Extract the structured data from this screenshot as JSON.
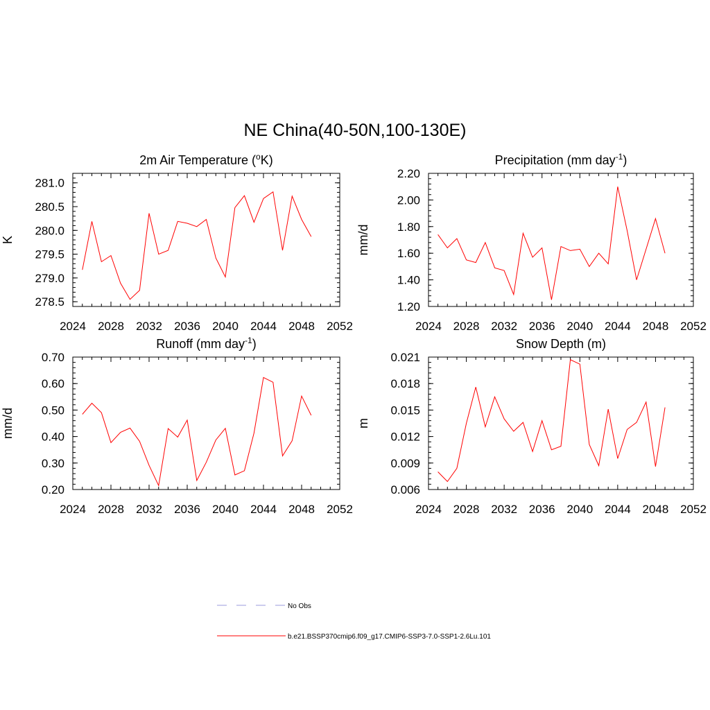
{
  "figure": {
    "title": "NE China(40-50N,100-130E)"
  },
  "legend": {
    "entries": [
      {
        "label": "No Obs",
        "color": "#9999dd",
        "dash": "dashed"
      },
      {
        "label": "b.e21.BSSP370cmip6.f09_g17.CMIP6-SSP3-7.0-SSP1-2.6Lu.101",
        "color": "#ff0000",
        "dash": "solid"
      }
    ]
  },
  "chart_data": [
    {
      "type": "line",
      "title": "2m Air Temperature",
      "title_sup": "o",
      "title_parts": [
        "2m Air Temperature (",
        "K)"
      ],
      "xlabel": "",
      "ylabel": "K",
      "xlim": [
        2024,
        2052
      ],
      "ylim": [
        278.4,
        281.2
      ],
      "x_ticks": [
        2024,
        2028,
        2032,
        2036,
        2040,
        2044,
        2048,
        2052
      ],
      "y_ticks": [
        "278.5",
        "279.0",
        "279.5",
        "280.0",
        "280.5",
        "281.0"
      ],
      "grid": false,
      "series": [
        {
          "color": "#ff0000",
          "x": [
            2025,
            2026,
            2027,
            2028,
            2029,
            2030,
            2031,
            2032,
            2033,
            2034,
            2035,
            2036,
            2037,
            2038,
            2039,
            2040,
            2041,
            2042,
            2043,
            2044,
            2045,
            2046,
            2047,
            2048,
            2049
          ],
          "y": [
            279.17,
            280.19,
            279.34,
            279.47,
            278.89,
            278.55,
            278.74,
            280.36,
            279.5,
            279.58,
            280.19,
            280.15,
            280.08,
            280.23,
            279.42,
            279.02,
            280.48,
            280.73,
            280.17,
            280.67,
            280.81,
            279.58,
            280.72,
            280.23,
            279.87
          ]
        }
      ]
    },
    {
      "type": "line",
      "title": "Precipitation",
      "title_sup": "-1",
      "title_parts": [
        "Precipitation (mm day",
        ")"
      ],
      "xlabel": "",
      "ylabel": "mm/d",
      "xlim": [
        2024,
        2052
      ],
      "ylim": [
        1.2,
        2.2
      ],
      "x_ticks": [
        2024,
        2028,
        2032,
        2036,
        2040,
        2044,
        2048,
        2052
      ],
      "y_ticks": [
        "1.20",
        "1.40",
        "1.60",
        "1.80",
        "2.00",
        "2.20"
      ],
      "grid": false,
      "series": [
        {
          "color": "#ff0000",
          "x": [
            2025,
            2026,
            2027,
            2028,
            2029,
            2030,
            2031,
            2032,
            2033,
            2034,
            2035,
            2036,
            2037,
            2038,
            2039,
            2040,
            2041,
            2042,
            2043,
            2044,
            2045,
            2046,
            2047,
            2048,
            2049
          ],
          "y": [
            1.74,
            1.64,
            1.71,
            1.55,
            1.53,
            1.68,
            1.49,
            1.47,
            1.29,
            1.75,
            1.57,
            1.64,
            1.25,
            1.65,
            1.62,
            1.63,
            1.5,
            1.6,
            1.52,
            2.1,
            1.77,
            1.4,
            1.63,
            1.86,
            1.6
          ]
        }
      ]
    },
    {
      "type": "line",
      "title": "Runoff",
      "title_sup": "-1",
      "title_parts": [
        "Runoff (mm day",
        ")"
      ],
      "xlabel": "",
      "ylabel": "mm/d",
      "xlim": [
        2024,
        2052
      ],
      "ylim": [
        0.2,
        0.7
      ],
      "x_ticks": [
        2024,
        2028,
        2032,
        2036,
        2040,
        2044,
        2048,
        2052
      ],
      "y_ticks": [
        "0.20",
        "0.30",
        "0.40",
        "0.50",
        "0.60",
        "0.70"
      ],
      "grid": false,
      "series": [
        {
          "color": "#ff0000",
          "x": [
            2025,
            2026,
            2027,
            2028,
            2029,
            2030,
            2031,
            2032,
            2033,
            2034,
            2035,
            2036,
            2037,
            2038,
            2039,
            2040,
            2041,
            2042,
            2043,
            2044,
            2045,
            2046,
            2047,
            2048,
            2049
          ],
          "y": [
            0.484,
            0.526,
            0.49,
            0.377,
            0.416,
            0.432,
            0.382,
            0.291,
            0.215,
            0.43,
            0.398,
            0.462,
            0.234,
            0.303,
            0.387,
            0.431,
            0.255,
            0.271,
            0.413,
            0.623,
            0.605,
            0.327,
            0.384,
            0.553,
            0.48
          ]
        }
      ]
    },
    {
      "type": "line",
      "title": "Snow Depth (m)",
      "xlabel": "",
      "ylabel": "m",
      "xlim": [
        2024,
        2052
      ],
      "ylim": [
        0.006,
        0.021
      ],
      "x_ticks": [
        2024,
        2028,
        2032,
        2036,
        2040,
        2044,
        2048,
        2052
      ],
      "y_ticks": [
        "0.006",
        "0.009",
        "0.012",
        "0.015",
        "0.018",
        "0.021"
      ],
      "grid": false,
      "series": [
        {
          "color": "#ff0000",
          "x": [
            2025,
            2026,
            2027,
            2028,
            2029,
            2030,
            2031,
            2032,
            2033,
            2034,
            2035,
            2036,
            2037,
            2038,
            2039,
            2040,
            2041,
            2042,
            2043,
            2044,
            2045,
            2046,
            2047,
            2048,
            2049
          ],
          "y": [
            0.008,
            0.0069,
            0.0084,
            0.0135,
            0.0176,
            0.0131,
            0.0165,
            0.014,
            0.0126,
            0.0136,
            0.0103,
            0.0138,
            0.0105,
            0.0109,
            0.0207,
            0.0202,
            0.0111,
            0.0087,
            0.0151,
            0.0095,
            0.0128,
            0.0136,
            0.0159,
            0.0086,
            0.0153
          ]
        }
      ]
    }
  ]
}
